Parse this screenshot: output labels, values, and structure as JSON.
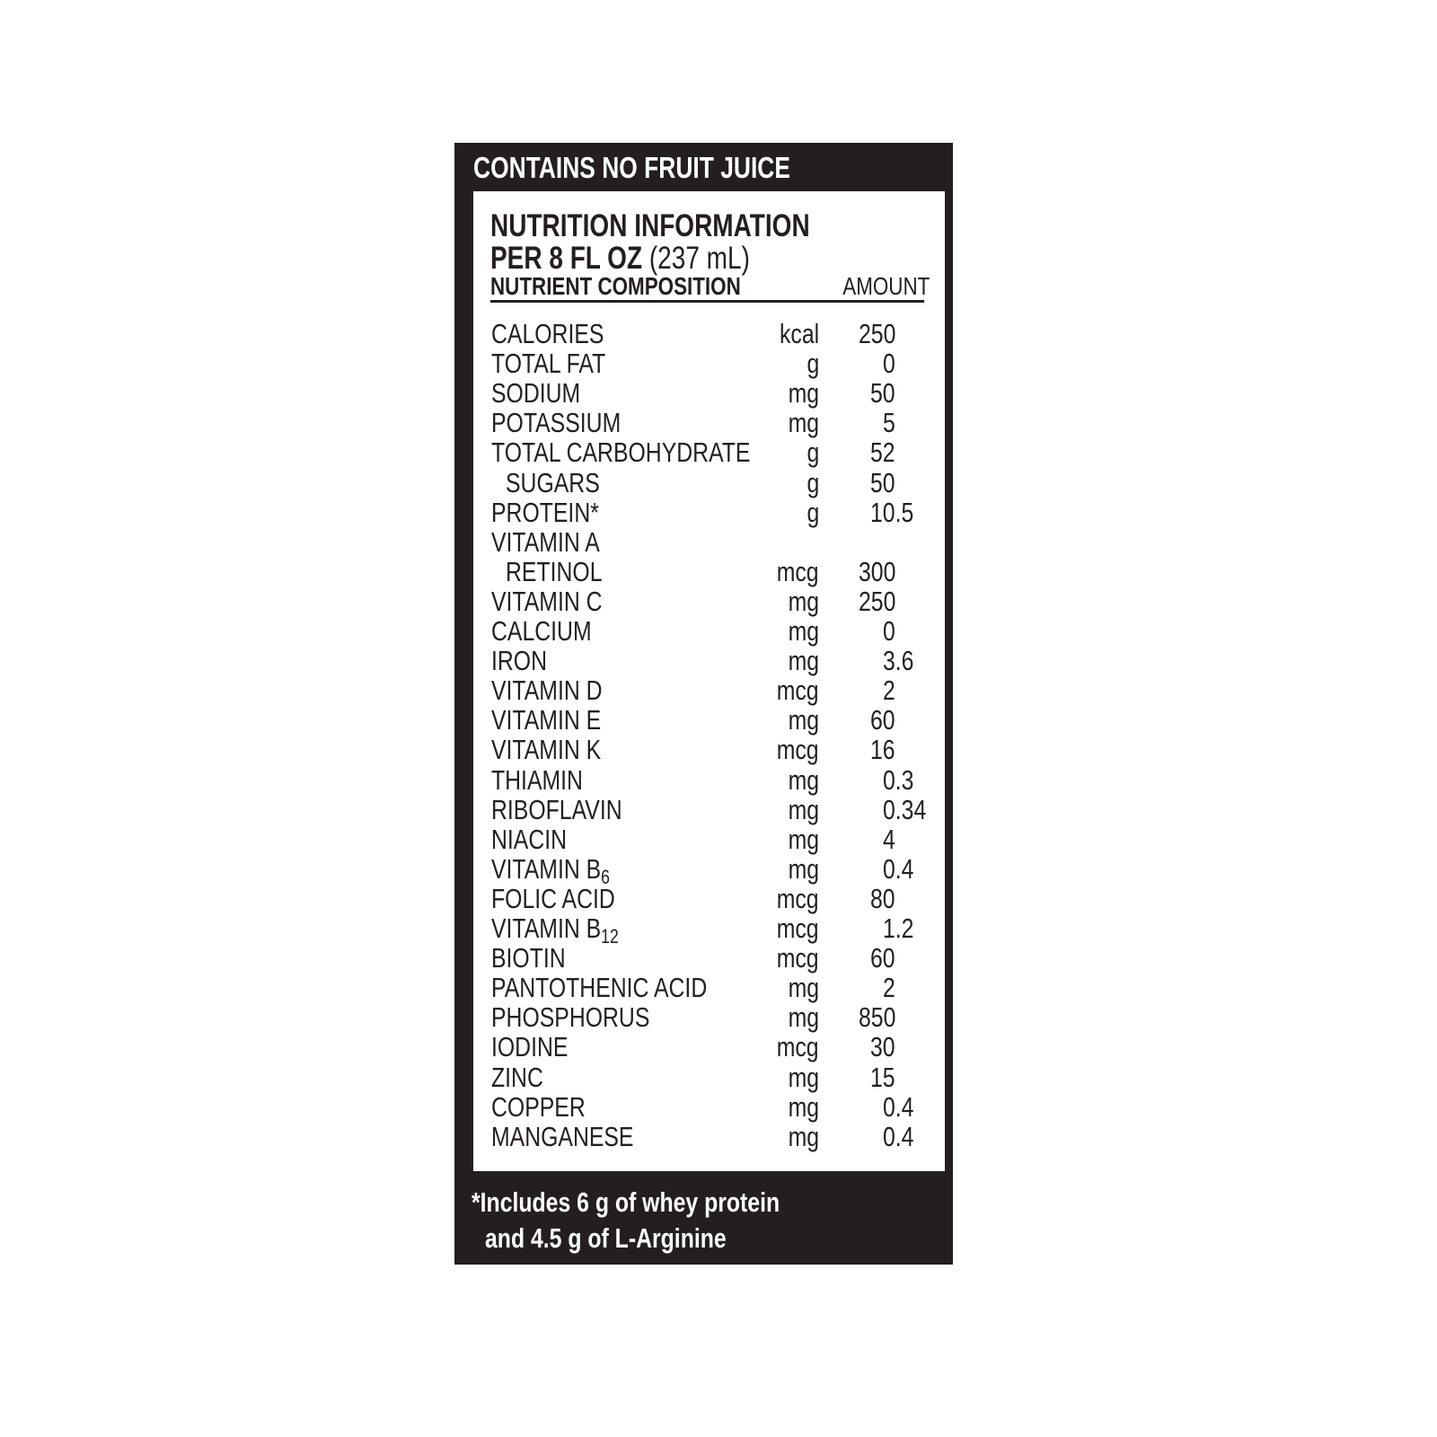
{
  "banner": "CONTAINS NO FRUIT JUICE",
  "header": {
    "title": "NUTRITION INFORMATION",
    "serving_bold": "PER 8 FL OZ",
    "serving_regular": "(237 mL)",
    "col_nutrient": "NUTRIENT COMPOSITION",
    "col_amount": "AMOUNT"
  },
  "nutrients": [
    {
      "name": "CALORIES",
      "unit": "kcal",
      "value": "250"
    },
    {
      "name": "TOTAL FAT",
      "unit": "g",
      "value": "0"
    },
    {
      "name": "SODIUM",
      "unit": "mg",
      "value": "50"
    },
    {
      "name": "POTASSIUM",
      "unit": "mg",
      "value": "5"
    },
    {
      "name": "TOTAL CARBOHYDRATE",
      "unit": "g",
      "value": "52"
    },
    {
      "name": "SUGARS",
      "unit": "g",
      "value": "50",
      "indent": true
    },
    {
      "name": "PROTEIN*",
      "unit": "g",
      "value": "10.5"
    },
    {
      "name": "VITAMIN A",
      "unit": "",
      "value": ""
    },
    {
      "name": "RETINOL",
      "unit": "mcg",
      "value": "300",
      "indent": true
    },
    {
      "name": "VITAMIN C",
      "unit": "mg",
      "value": "250"
    },
    {
      "name": "CALCIUM",
      "unit": "mg",
      "value": "0"
    },
    {
      "name": "IRON",
      "unit": "mg",
      "value": "3.6"
    },
    {
      "name": "VITAMIN D",
      "unit": "mcg",
      "value": "2"
    },
    {
      "name": "VITAMIN E",
      "unit": "mg",
      "value": "60"
    },
    {
      "name": "VITAMIN K",
      "unit": "mcg",
      "value": "16"
    },
    {
      "name": "THIAMIN",
      "unit": "mg",
      "value": "0.3"
    },
    {
      "name": "RIBOFLAVIN",
      "unit": "mg",
      "value": "0.34"
    },
    {
      "name": "NIACIN",
      "unit": "mg",
      "value": "4"
    },
    {
      "name": "VITAMIN B",
      "sub": "6",
      "unit": "mg",
      "value": "0.4"
    },
    {
      "name": "FOLIC ACID",
      "unit": "mcg",
      "value": "80"
    },
    {
      "name": "VITAMIN B",
      "sub": "12",
      "unit": "mcg",
      "value": "1.2"
    },
    {
      "name": "BIOTIN",
      "unit": "mcg",
      "value": "60"
    },
    {
      "name": "PANTOTHENIC ACID",
      "unit": "mg",
      "value": "2"
    },
    {
      "name": "PHOSPHORUS",
      "unit": "mg",
      "value": "850"
    },
    {
      "name": "IODINE",
      "unit": "mcg",
      "value": "30"
    },
    {
      "name": "ZINC",
      "unit": "mg",
      "value": "15"
    },
    {
      "name": "COPPER",
      "unit": "mg",
      "value": "0.4"
    },
    {
      "name": "MANGANESE",
      "unit": "mg",
      "value": "0.4"
    }
  ],
  "footnote": {
    "line1": "*Includes 6 g of whey protein",
    "line2": "and 4.5 g of L-Arginine"
  },
  "colors": {
    "label_black": "#231f20",
    "background": "#ffffff"
  }
}
